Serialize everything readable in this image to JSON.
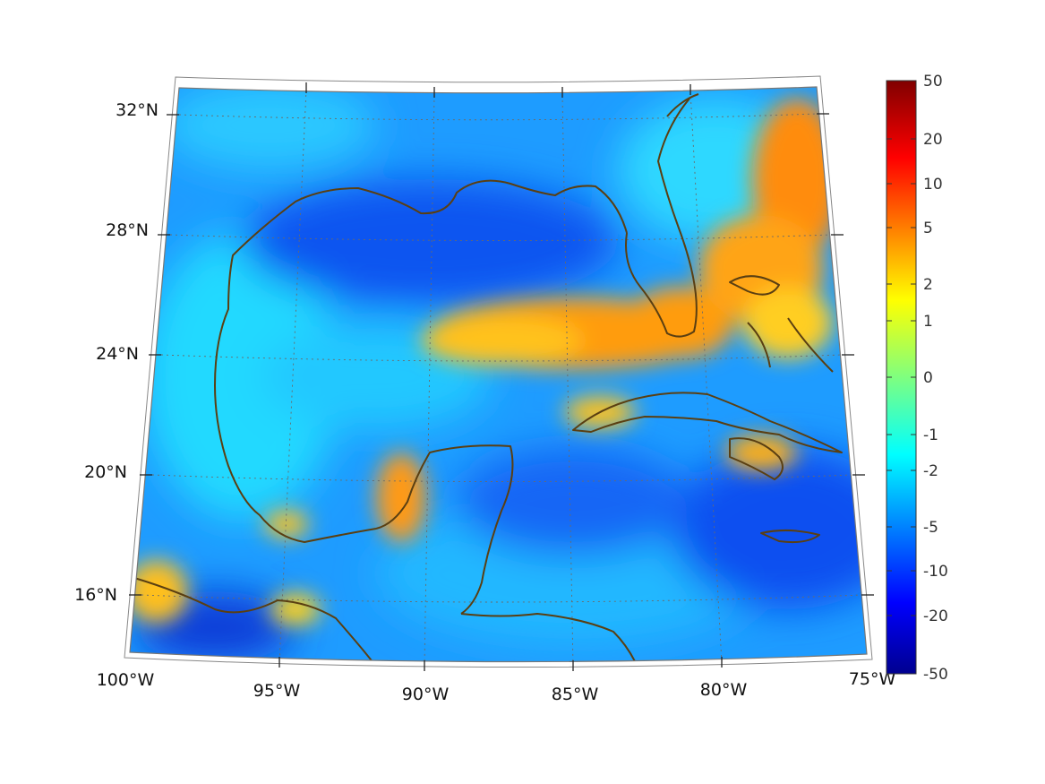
{
  "map": {
    "lon_labels": [
      "100°W",
      "95°W",
      "90°W",
      "85°W",
      "80°W",
      "75°W"
    ],
    "lat_labels": [
      "32°N",
      "28°N",
      "24°N",
      "20°N",
      "16°N"
    ],
    "extent": {
      "lon": [
        -100,
        -75
      ],
      "lat": [
        14,
        33
      ]
    },
    "colormap": "jet",
    "coastline_color": "#5a3f12",
    "gridlines": "dotted"
  },
  "colorbar": {
    "tick_labels": [
      "50",
      "20",
      "10",
      "5",
      "2",
      "1",
      "0",
      "-1",
      "-2",
      "-5",
      "-10",
      "-20",
      "-50"
    ],
    "range": [
      -50,
      50
    ],
    "scale": "symmetric-log"
  }
}
